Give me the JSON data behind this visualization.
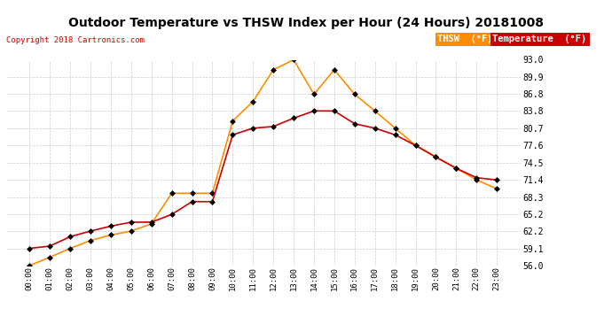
{
  "title": "Outdoor Temperature vs THSW Index per Hour (24 Hours) 20181008",
  "copyright": "Copyright 2018 Cartronics.com",
  "hours": [
    "00:00",
    "01:00",
    "02:00",
    "03:00",
    "04:00",
    "05:00",
    "06:00",
    "07:00",
    "08:00",
    "09:00",
    "10:00",
    "11:00",
    "12:00",
    "13:00",
    "14:00",
    "15:00",
    "16:00",
    "17:00",
    "18:00",
    "19:00",
    "20:00",
    "21:00",
    "22:00",
    "23:00"
  ],
  "temperature": [
    59.1,
    59.5,
    61.2,
    62.2,
    63.1,
    63.8,
    63.8,
    65.2,
    67.5,
    67.5,
    79.5,
    80.7,
    81.0,
    82.5,
    83.8,
    83.8,
    81.5,
    80.7,
    79.5,
    77.6,
    75.5,
    73.5,
    71.8,
    71.4
  ],
  "thsw": [
    56.0,
    57.5,
    59.1,
    60.5,
    61.5,
    62.2,
    63.5,
    69.0,
    69.0,
    69.0,
    82.0,
    85.5,
    91.2,
    93.0,
    86.8,
    91.2,
    86.8,
    83.8,
    80.7,
    77.6,
    75.5,
    73.5,
    71.4,
    69.8
  ],
  "temp_color": "#cc0000",
  "thsw_color": "#ff8c00",
  "marker_color": "#000000",
  "ylim_min": 56.0,
  "ylim_max": 93.0,
  "yticks": [
    56.0,
    59.1,
    62.2,
    65.2,
    68.3,
    71.4,
    74.5,
    77.6,
    80.7,
    83.8,
    86.8,
    89.9,
    93.0
  ],
  "background_color": "#ffffff",
  "grid_color": "#cccccc",
  "thsw_legend_bg": "#ff8c00",
  "temp_legend_bg": "#cc0000",
  "legend_thsw_label": "THSW  (°F)",
  "legend_temp_label": "Temperature  (°F)"
}
